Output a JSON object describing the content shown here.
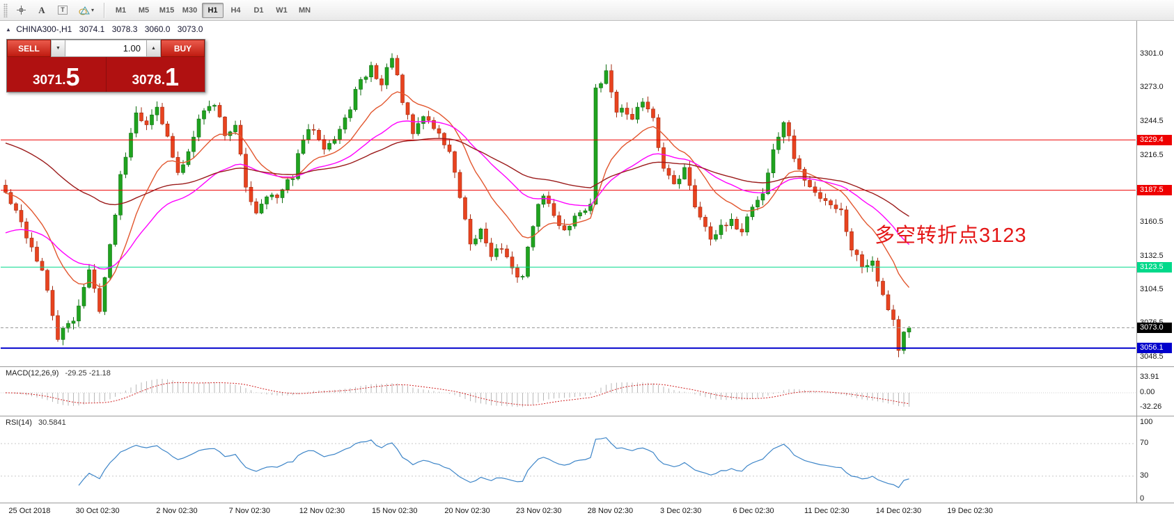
{
  "toolbar": {
    "tools": [
      {
        "name": "crosshair",
        "icon": "crosshair-icon"
      },
      {
        "name": "text",
        "icon": "text-a-icon",
        "label": "A"
      },
      {
        "name": "text-label",
        "icon": "text-label-icon",
        "label": "T"
      },
      {
        "name": "shapes",
        "icon": "shapes-icon"
      }
    ],
    "timeframes": [
      "M1",
      "M5",
      "M15",
      "M30",
      "H1",
      "H4",
      "D1",
      "W1",
      "MN"
    ],
    "active_timeframe": "H1"
  },
  "chart_header": {
    "symbol_period": "CHINA300-,H1",
    "open": "3074.1",
    "high": "3078.3",
    "low": "3060.0",
    "close": "3073.0"
  },
  "trade_panel": {
    "sell_label": "SELL",
    "buy_label": "BUY",
    "volume_value": "1.00",
    "sell_price_small": "3071.",
    "sell_price_big": "5",
    "buy_price_small": "3078.",
    "buy_price_big": "1"
  },
  "annotation": {
    "text": "多空转折点3123",
    "color": "#e41616"
  },
  "price_scale": {
    "ticks": [
      "3301.0",
      "3273.0",
      "3244.5",
      "3216.5",
      "3187.5",
      "3160.5",
      "3132.5",
      "3104.5",
      "3076.5",
      "3048.5"
    ],
    "tick_values": [
      3301.0,
      3273.0,
      3244.5,
      3216.5,
      3187.5,
      3160.5,
      3132.5,
      3104.5,
      3076.5,
      3048.5
    ],
    "tags": [
      {
        "label": "3229.4",
        "value": 3229.4,
        "bg": "#ee0000",
        "fg": "#ffffff"
      },
      {
        "label": "3187.5",
        "value": 3187.5,
        "bg": "#ee0000",
        "fg": "#ffffff"
      },
      {
        "label": "3123.5",
        "value": 3123.5,
        "bg": "#00d98a",
        "fg": "#ffffff"
      },
      {
        "label": "3073.0",
        "value": 3073.0,
        "bg": "#000000",
        "fg": "#ffffff"
      },
      {
        "label": "3056.1",
        "value": 3056.1,
        "bg": "#0000cc",
        "fg": "#ffffff"
      }
    ]
  },
  "time_axis": {
    "labels": [
      "25 Oct 2018",
      "30 Oct 02:30",
      "2 Nov 02:30",
      "7 Nov 02:30",
      "12 Nov 02:30",
      "15 Nov 02:30",
      "20 Nov 02:30",
      "23 Nov 02:30",
      "28 Nov 02:30",
      "3 Dec 02:30",
      "6 Dec 02:30",
      "11 Dec 02:30",
      "14 Dec 02:30",
      "19 Dec 02:30"
    ],
    "positions": [
      0.007,
      0.066,
      0.137,
      0.201,
      0.263,
      0.327,
      0.391,
      0.454,
      0.517,
      0.581,
      0.645,
      0.708,
      0.771,
      0.834
    ]
  },
  "indicators": {
    "macd": {
      "title": "MACD(12,26,9)",
      "values": "-29.25 -21.18",
      "scale": [
        "33.91",
        "0.00",
        "-32.26"
      ],
      "scale_values": [
        33.91,
        0,
        -32.26
      ]
    },
    "rsi": {
      "title": "RSI(14)",
      "value": "30.5841",
      "scale": [
        "100",
        "70",
        "30",
        "0"
      ],
      "scale_values": [
        100,
        70,
        30,
        0
      ],
      "levels": [
        70,
        30
      ]
    }
  },
  "chart_data": {
    "type": "candlestick",
    "symbol": "CHINA300-",
    "timeframe": "H1",
    "title": "CHINA300-,H1 3074.1 3078.3 3060.0 3073.0",
    "ylim": [
      3040.9,
      3328.5
    ],
    "current_price": 3073.0,
    "candle_count": 174,
    "up_color": "#1fa31f",
    "down_color": "#e8431f",
    "close_waypoints": [
      [
        0,
        3185
      ],
      [
        3,
        3160
      ],
      [
        7,
        3120
      ],
      [
        10,
        3065
      ],
      [
        13,
        3080
      ],
      [
        16,
        3120
      ],
      [
        18,
        3090
      ],
      [
        20,
        3140
      ],
      [
        22,
        3200
      ],
      [
        25,
        3255
      ],
      [
        27,
        3240
      ],
      [
        29,
        3260
      ],
      [
        31,
        3230
      ],
      [
        33,
        3200
      ],
      [
        35,
        3220
      ],
      [
        37,
        3250
      ],
      [
        40,
        3260
      ],
      [
        42,
        3235
      ],
      [
        44,
        3240
      ],
      [
        46,
        3190
      ],
      [
        48,
        3170
      ],
      [
        50,
        3185
      ],
      [
        52,
        3180
      ],
      [
        55,
        3200
      ],
      [
        57,
        3230
      ],
      [
        59,
        3240
      ],
      [
        61,
        3225
      ],
      [
        63,
        3230
      ],
      [
        65,
        3245
      ],
      [
        67,
        3270
      ],
      [
        70,
        3290
      ],
      [
        72,
        3275
      ],
      [
        74,
        3300
      ],
      [
        76,
        3260
      ],
      [
        78,
        3235
      ],
      [
        80,
        3250
      ],
      [
        82,
        3240
      ],
      [
        85,
        3220
      ],
      [
        87,
        3180
      ],
      [
        89,
        3140
      ],
      [
        91,
        3155
      ],
      [
        93,
        3135
      ],
      [
        95,
        3140
      ],
      [
        97,
        3120
      ],
      [
        99,
        3116
      ],
      [
        101,
        3160
      ],
      [
        103,
        3185
      ],
      [
        105,
        3165
      ],
      [
        107,
        3155
      ],
      [
        110,
        3170
      ],
      [
        112,
        3175
      ],
      [
        113,
        3270
      ],
      [
        115,
        3285
      ],
      [
        117,
        3255
      ],
      [
        120,
        3250
      ],
      [
        122,
        3260
      ],
      [
        124,
        3245
      ],
      [
        126,
        3205
      ],
      [
        128,
        3195
      ],
      [
        130,
        3205
      ],
      [
        132,
        3175
      ],
      [
        135,
        3150
      ],
      [
        137,
        3155
      ],
      [
        139,
        3160
      ],
      [
        141,
        3155
      ],
      [
        143,
        3175
      ],
      [
        145,
        3185
      ],
      [
        147,
        3220
      ],
      [
        149,
        3245
      ],
      [
        151,
        3215
      ],
      [
        153,
        3195
      ],
      [
        155,
        3185
      ],
      [
        157,
        3180
      ],
      [
        160,
        3170
      ],
      [
        162,
        3140
      ],
      [
        164,
        3125
      ],
      [
        166,
        3130
      ],
      [
        168,
        3100
      ],
      [
        170,
        3080
      ],
      [
        171,
        3055
      ],
      [
        172,
        3068
      ],
      [
        173,
        3073
      ]
    ],
    "hlines": [
      {
        "price": 3229.4,
        "color": "#ee0000",
        "width": 1
      },
      {
        "price": 3187.5,
        "color": "#ee0000",
        "width": 1
      },
      {
        "price": 3123.5,
        "color": "#00d98a",
        "width": 1
      },
      {
        "price": 3056.1,
        "color": "#0000cc",
        "width": 2
      }
    ],
    "moving_averages": [
      {
        "period": 14,
        "color": "#e2572f",
        "seed": 3185
      },
      {
        "period": 34,
        "color": "#ff00ff",
        "seed": 3150
      },
      {
        "period": 68,
        "color": "#9b1b1b",
        "seed": 3228
      }
    ],
    "macd": {
      "fast": 12,
      "slow": 26,
      "signal": 9,
      "histogram_color": "#b8b8b8",
      "signal_color": "#d02020"
    },
    "rsi": {
      "period": 14,
      "color": "#3d85c8"
    }
  }
}
